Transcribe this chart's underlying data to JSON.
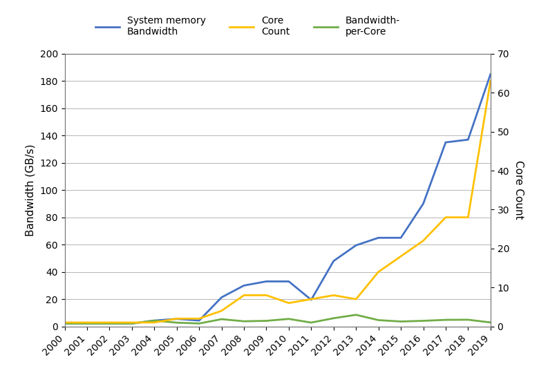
{
  "years": [
    2000,
    2001,
    2002,
    2003,
    2004,
    2005,
    2006,
    2007,
    2008,
    2009,
    2010,
    2011,
    2012,
    2013,
    2014,
    2015,
    2016,
    2017,
    2018,
    2019
  ],
  "bandwidth": [
    2.1,
    2.1,
    2.1,
    2.1,
    4.3,
    5.5,
    4.3,
    21.3,
    30.0,
    33.0,
    33.0,
    19.5,
    48.0,
    59.5,
    65.0,
    65.0,
    90.0,
    135.0,
    137.0,
    185.0
  ],
  "core_count": [
    1.0,
    1.0,
    1.0,
    1.0,
    1.0,
    2.0,
    2.0,
    4.0,
    8.0,
    8.0,
    6.0,
    7.0,
    8.0,
    7.0,
    14.0,
    18.0,
    22.0,
    28.0,
    28.0,
    63.0
  ],
  "bw_per_core": [
    2.1,
    2.1,
    2.1,
    2.1,
    4.3,
    2.75,
    2.15,
    5.3,
    3.75,
    4.1,
    5.5,
    2.8,
    6.0,
    8.5,
    4.6,
    3.6,
    4.1,
    4.8,
    4.9,
    2.9
  ],
  "bandwidth_color": "#4472C4",
  "core_count_color": "#FFC000",
  "bw_per_core_color": "#70AD47",
  "left_ylim": [
    0,
    200
  ],
  "right_ylim": [
    0,
    70
  ],
  "left_yticks": [
    0,
    20,
    40,
    60,
    80,
    100,
    120,
    140,
    160,
    180,
    200
  ],
  "right_yticks": [
    0,
    10,
    20,
    30,
    40,
    50,
    60,
    70
  ],
  "ylabel_left": "Bandwidth (GB/s)",
  "ylabel_right": "Core Count",
  "legend_labels": [
    "System memory\nBandwidth",
    "Core\nCount",
    "Bandwidth-\nper-Core"
  ],
  "line_width": 2.0,
  "background_color": "#ffffff",
  "grid_color": "#aaaaaa",
  "spine_color": "#777777",
  "tick_fontsize": 10,
  "label_fontsize": 11,
  "legend_fontsize": 10
}
